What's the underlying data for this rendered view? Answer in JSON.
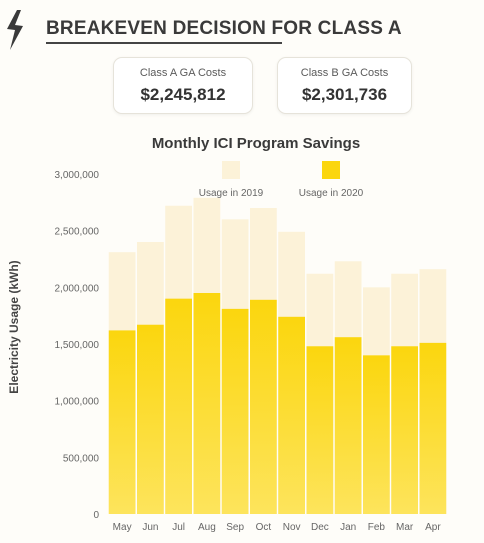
{
  "header": {
    "title": "BREAKEVEN DECISION FOR CLASS A",
    "logo_icon": "lightning-bolt-icon"
  },
  "cards": {
    "class_a": {
      "label": "Class A GA Costs",
      "value": "$2,245,812"
    },
    "class_b": {
      "label": "Class B GA Costs",
      "value": "$2,301,736"
    }
  },
  "colors": {
    "usage_2019": "#fcf2d8",
    "usage_2020_top": "#fbd60e",
    "usage_2020_bottom": "#fde45c"
  },
  "chart_data": {
    "type": "bar",
    "title": "Monthly ICI Program Savings",
    "ylabel": "Electricity Usage (kWh)",
    "xlabel": "",
    "ylim": [
      0,
      3000000
    ],
    "yticks": [
      0,
      500000,
      1000000,
      1500000,
      2000000,
      2500000,
      3000000
    ],
    "ytick_labels": [
      "0",
      "500,000",
      "1,000,000",
      "1,500,000",
      "2,000,000",
      "2,500,000",
      "3,000,000"
    ],
    "grid": false,
    "legend_position": "top-right",
    "categories": [
      "May",
      "Jun",
      "Jul",
      "Aug",
      "Sep",
      "Oct",
      "Nov",
      "Dec",
      "Jan",
      "Feb",
      "Mar",
      "Apr"
    ],
    "series": [
      {
        "name": "Usage in 2019",
        "values": [
          2310000,
          2400000,
          2720000,
          2790000,
          2600000,
          2700000,
          2490000,
          2120000,
          2230000,
          2000000,
          2120000,
          2160000
        ]
      },
      {
        "name": "Usage in 2020",
        "values": [
          1620000,
          1670000,
          1900000,
          1950000,
          1810000,
          1890000,
          1740000,
          1480000,
          1560000,
          1400000,
          1480000,
          1510000
        ]
      }
    ]
  }
}
